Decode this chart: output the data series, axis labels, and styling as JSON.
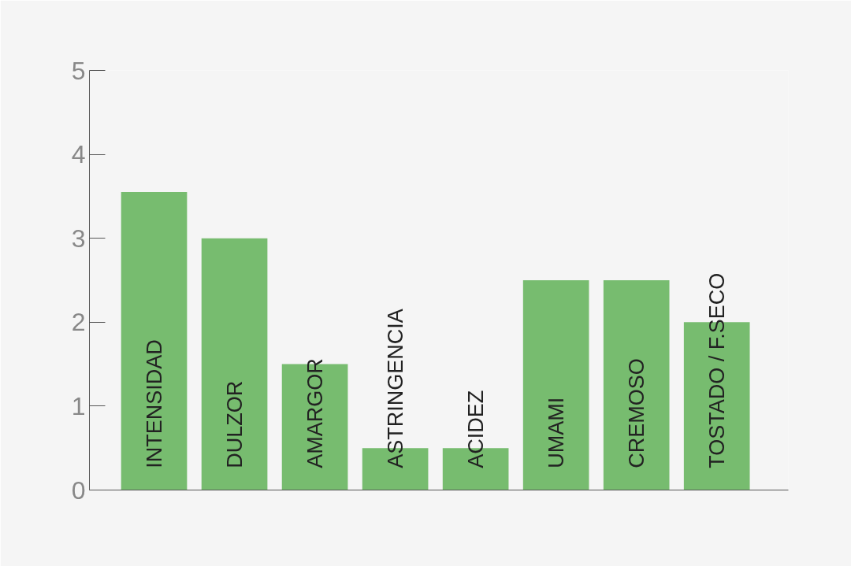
{
  "chart_data": {
    "type": "bar",
    "categories": [
      "INTENSIDAD",
      "DULZOR",
      "AMARGOR",
      "ASTRINGENCIA",
      "ACIDEZ",
      "UMAMI",
      "CREMOSO",
      "TOSTADO / F.SECO"
    ],
    "values": [
      3.55,
      3,
      1.5,
      0.5,
      0.5,
      2.5,
      2.5,
      2
    ],
    "color": "#77bc6f",
    "ylim": [
      0,
      5
    ],
    "yticks": [
      0,
      1,
      2,
      3,
      4,
      5
    ],
    "grid": false
  }
}
